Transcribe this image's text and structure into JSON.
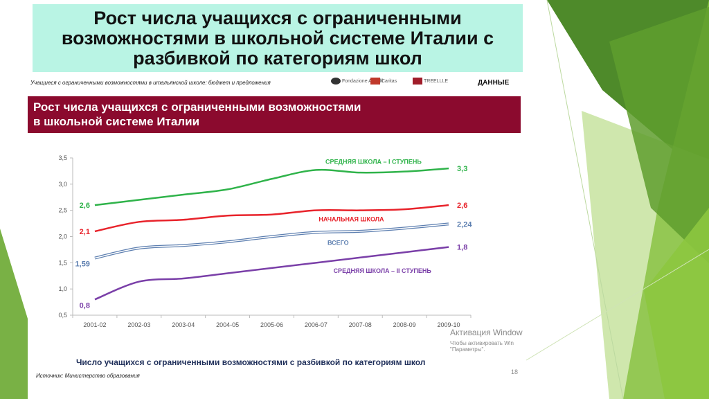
{
  "slide": {
    "title": "Рост числа учащихся с ограниченными\nвозможностями в школьной системе Италии с\nразбивкой по категориям школ",
    "source_top": "Учащиеся с ограниченными возможностями в итальянской школе: бюджет и предложения",
    "logos": [
      "Fondazione Agnelli",
      "Caritas",
      "TREELLLE"
    ],
    "data_tag": "ДАННЫЕ",
    "band_title": "Рост числа учащихся с ограниченными возможностями\nв школьной системе Италии",
    "bottom_label": "Число учащихся с ограниченными возможностями с разбивкой по категориям школ",
    "source_bottom": "Источник: Министерство образования",
    "activation_title": "Активация Window",
    "activation_line1": "Чтобы активировать Win",
    "activation_line2": "\"Параметры\".",
    "page_number": "18"
  },
  "colors": {
    "title_bg": "#b9f4e4",
    "band_bg": "#8b0a2e",
    "green": "#2fb34a",
    "red": "#e8232b",
    "blue": "#5d7fb0",
    "purple": "#7a3fa8",
    "deco_green": "#6aa831"
  },
  "chart_data": {
    "type": "line",
    "categories": [
      "2001-02",
      "2002-03",
      "2003-04",
      "2004-05",
      "2005-06",
      "2006-07",
      "2007-08",
      "2008-09",
      "2009-10"
    ],
    "ylim": [
      0.5,
      3.5
    ],
    "yticks": [
      "0,5",
      "1,0",
      "1,5",
      "2,0",
      "2,5",
      "3,0",
      "3,5"
    ],
    "grid": false,
    "series": [
      {
        "name": "СРЕДНЯЯ ШКОЛА – I СТУПЕНЬ",
        "color": "#2fb34a",
        "values": [
          2.6,
          2.7,
          2.8,
          2.9,
          3.1,
          3.27,
          3.22,
          3.24,
          3.3
        ],
        "start_label": "2,6",
        "end_label": "3,3"
      },
      {
        "name": "НАЧАЛЬНАЯ ШКОЛА",
        "color": "#e8232b",
        "values": [
          2.1,
          2.28,
          2.32,
          2.4,
          2.42,
          2.5,
          2.5,
          2.52,
          2.6
        ],
        "start_label": "2,1",
        "end_label": "2,6"
      },
      {
        "name": "ВСЕГО",
        "color": "#5d7fb0",
        "values": [
          1.59,
          1.78,
          1.83,
          1.9,
          2.0,
          2.08,
          2.1,
          2.16,
          2.24
        ],
        "start_label": "1,59",
        "end_label": "2,24"
      },
      {
        "name": "СРЕДНЯЯ ШКОЛА – II СТУПЕНЬ",
        "color": "#7a3fa8",
        "values": [
          0.8,
          1.14,
          1.2,
          1.3,
          1.4,
          1.5,
          1.6,
          1.7,
          1.8
        ],
        "start_label": "0,8",
        "end_label": "1,8"
      }
    ]
  }
}
